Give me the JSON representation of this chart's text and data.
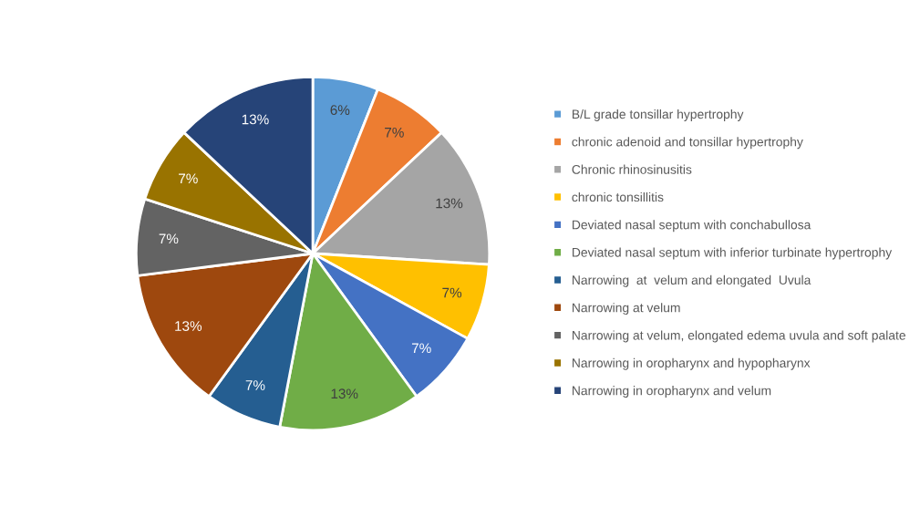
{
  "chart_data": {
    "type": "pie",
    "categories": [
      "B/L grade tonsillar hypertrophy",
      "chronic adenoid and tonsillar hypertrophy",
      "Chronic rhinosinusitis",
      "chronic tonsillitis",
      "Deviated nasal septum with conchabullosa",
      "Deviated nasal septum with inferior turbinate hypertrophy",
      "Narrowing  at  velum and elongated  Uvula",
      "Narrowing at velum",
      "Narrowing at velum, elongated edema uvula and soft palate",
      "Narrowing in oropharynx and hypopharynx",
      "Narrowing in oropharynx and velum"
    ],
    "values": [
      6,
      7,
      13,
      7,
      7,
      13,
      7,
      13,
      7,
      7,
      13
    ],
    "value_labels": [
      "6%",
      "7%",
      "13%",
      "7%",
      "7%",
      "13%",
      "7%",
      "13%",
      "7%",
      "7%",
      "13%"
    ],
    "colors": [
      "#5b9bd5",
      "#ed7d31",
      "#a5a5a5",
      "#ffc000",
      "#4472c4",
      "#70ad47",
      "#255e91",
      "#9e480e",
      "#636363",
      "#997300",
      "#264478"
    ],
    "legend": "right"
  }
}
